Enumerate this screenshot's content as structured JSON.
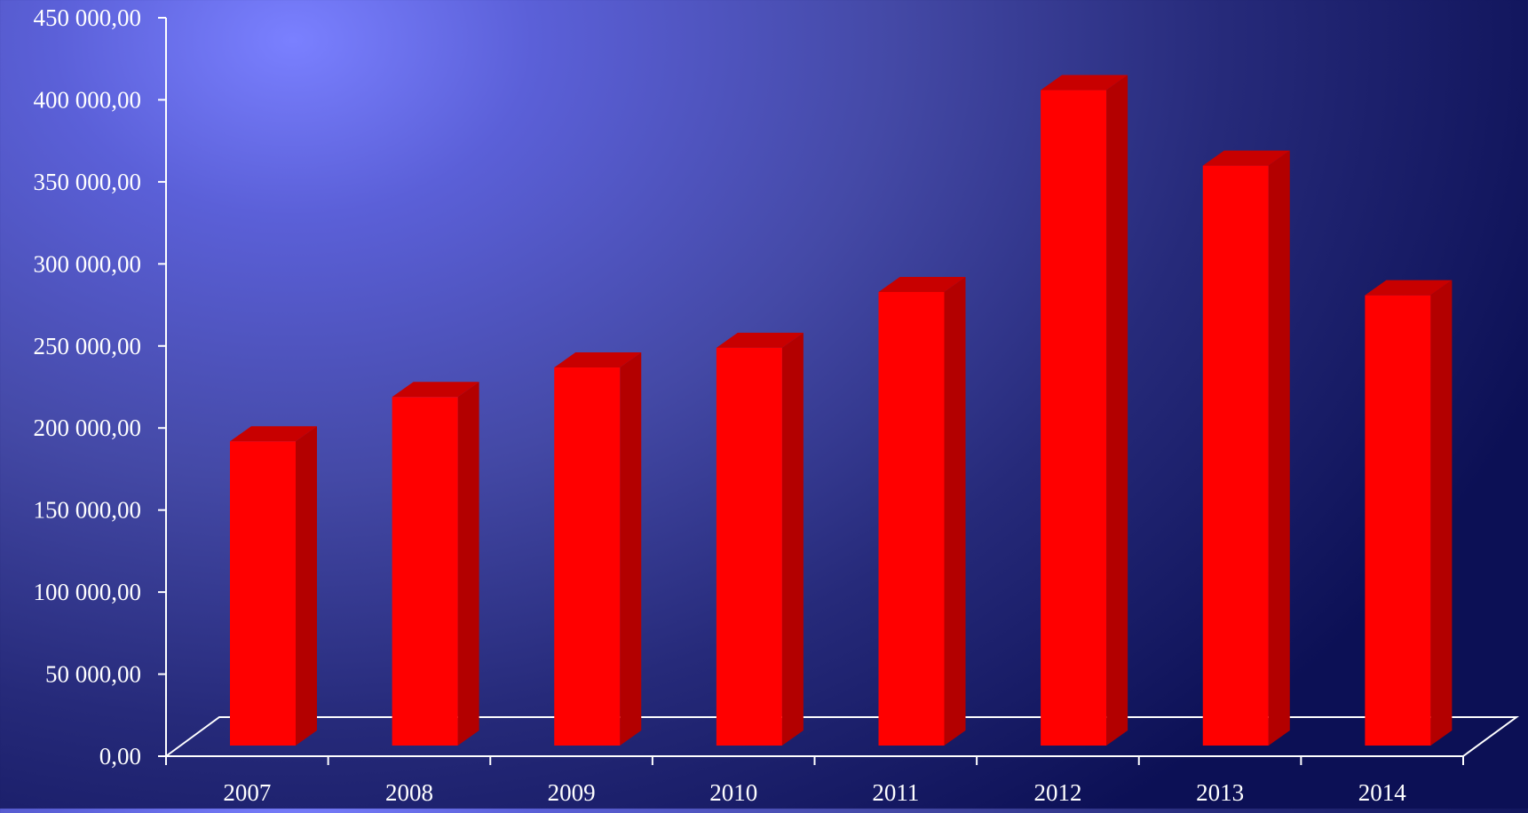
{
  "chart_data": {
    "type": "bar",
    "style": "3d-column",
    "categories": [
      "2007",
      "2008",
      "2009",
      "2010",
      "2011",
      "2012",
      "2013",
      "2014"
    ],
    "series": [
      {
        "values": [
          200000,
          227000,
          245000,
          257000,
          291000,
          414000,
          368000,
          289000
        ],
        "color": "#ff0000"
      }
    ],
    "ylim": [
      0,
      450000
    ],
    "yticks": [
      {
        "value": 0,
        "label": "0,00"
      },
      {
        "value": 50000,
        "label": "50 000,00"
      },
      {
        "value": 100000,
        "label": "100 000,00"
      },
      {
        "value": 150000,
        "label": "150 000,00"
      },
      {
        "value": 200000,
        "label": "200 000,00"
      },
      {
        "value": 250000,
        "label": "250 000,00"
      },
      {
        "value": 300000,
        "label": "300 000,00"
      },
      {
        "value": 350000,
        "label": "350 000,00"
      },
      {
        "value": 400000,
        "label": "400 000,00"
      },
      {
        "value": 450000,
        "label": "450 000,00"
      }
    ],
    "grid": false,
    "legend": "none",
    "colors": {
      "bar_front": "#ff0000",
      "bar_side": "#b30000",
      "bar_top": "#c80000",
      "axis": "#ffffff",
      "text": "#ffffff"
    }
  }
}
